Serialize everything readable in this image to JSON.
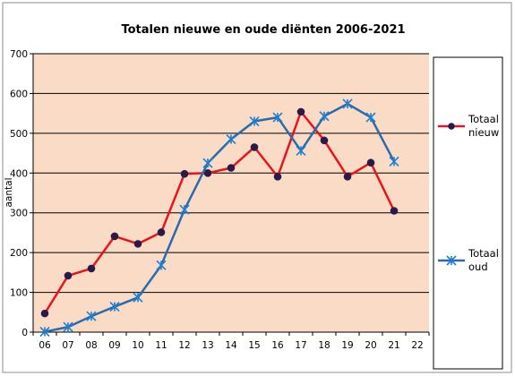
{
  "chart_data": {
    "type": "line",
    "title": "Totalen nieuwe en oude diënten 2006-2021",
    "xlabel": "",
    "ylabel": "aantal",
    "categories": [
      "06",
      "07",
      "08",
      "09",
      "10",
      "11",
      "12",
      "13",
      "14",
      "15",
      "16",
      "17",
      "18",
      "19",
      "20",
      "21",
      "22"
    ],
    "ylim": [
      0,
      700
    ],
    "yticks": [
      0,
      100,
      200,
      300,
      400,
      500,
      600,
      700
    ],
    "grid": true,
    "legend_position": "right",
    "plot_background": "#fadbc6",
    "series": [
      {
        "name": "Totaal nieuw",
        "legend_lines": [
          "Totaal",
          "nieuw"
        ],
        "color": "#e8141b",
        "marker": "circle",
        "marker_color": "#2a1a4a",
        "values": [
          47,
          142,
          160,
          241,
          222,
          251,
          398,
          400,
          413,
          465,
          391,
          554,
          482,
          391,
          426,
          305,
          null
        ]
      },
      {
        "name": "Totaal oud",
        "legend_lines": [
          "Totaal",
          "oud"
        ],
        "color": "#2a6aad",
        "marker": "star",
        "marker_color": "#1c7fd0",
        "values": [
          1,
          13,
          40,
          64,
          87,
          168,
          308,
          425,
          485,
          530,
          540,
          456,
          543,
          574,
          540,
          429,
          null
        ]
      }
    ]
  }
}
